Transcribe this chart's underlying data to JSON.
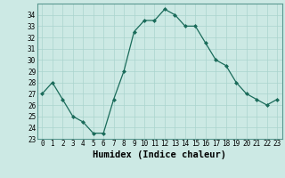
{
  "x": [
    0,
    1,
    2,
    3,
    4,
    5,
    6,
    7,
    8,
    9,
    10,
    11,
    12,
    13,
    14,
    15,
    16,
    17,
    18,
    19,
    20,
    21,
    22,
    23
  ],
  "y": [
    27,
    28,
    26.5,
    25,
    24.5,
    23.5,
    23.5,
    26.5,
    29,
    32.5,
    33.5,
    33.5,
    34.5,
    34,
    33,
    33,
    31.5,
    30,
    29.5,
    28,
    27,
    26.5,
    26,
    26.5
  ],
  "line_color": "#1a6b5a",
  "marker": "D",
  "marker_size": 2.0,
  "bg_color": "#cce9e4",
  "grid_color": "#aad4ce",
  "xlabel": "Humidex (Indice chaleur)",
  "xlim": [
    -0.5,
    23.5
  ],
  "ylim": [
    23,
    35
  ],
  "yticks": [
    23,
    24,
    25,
    26,
    27,
    28,
    29,
    30,
    31,
    32,
    33,
    34
  ],
  "xtick_labels": [
    "0",
    "1",
    "2",
    "3",
    "4",
    "5",
    "6",
    "7",
    "8",
    "9",
    "10",
    "11",
    "12",
    "13",
    "14",
    "15",
    "16",
    "17",
    "18",
    "19",
    "20",
    "21",
    "22",
    "23"
  ],
  "tick_fontsize": 5.5,
  "xlabel_fontsize": 7.5
}
